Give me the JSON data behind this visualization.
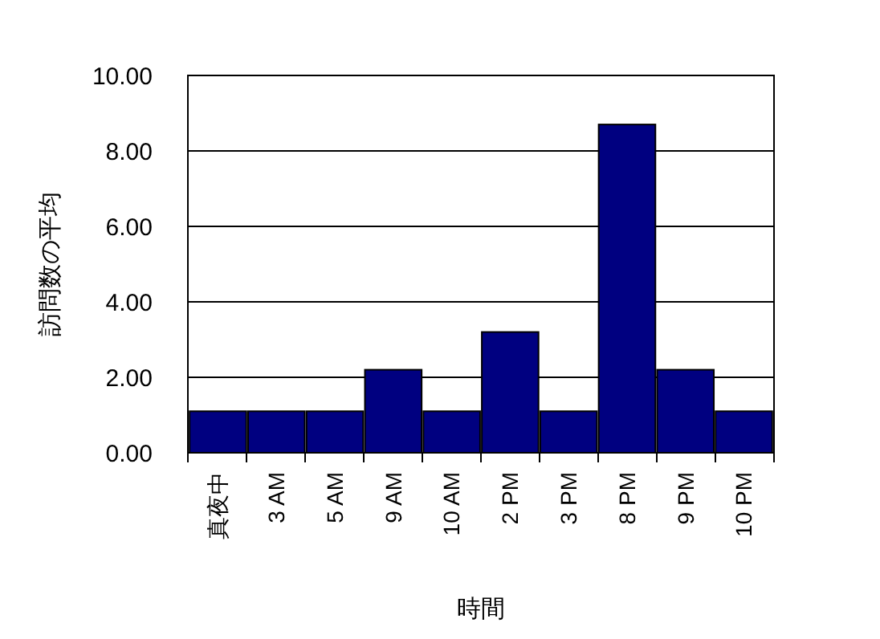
{
  "chart_data": {
    "type": "bar",
    "xlabel": "時間",
    "ylabel": "訪問数の平均",
    "categories": [
      "真夜中",
      "3 AM",
      "5 AM",
      "9 AM",
      "10 AM",
      "2 PM",
      "3 PM",
      "8 PM",
      "9 PM",
      "10 PM"
    ],
    "values": [
      1.1,
      1.1,
      1.1,
      2.2,
      1.1,
      3.2,
      1.1,
      8.7,
      2.2,
      1.1
    ],
    "color": "#000080",
    "ylim": [
      0,
      10
    ],
    "yticks": [
      {
        "value": 0,
        "label": "0.00"
      },
      {
        "value": 2,
        "label": "2.00"
      },
      {
        "value": 4,
        "label": "4.00"
      },
      {
        "value": 6,
        "label": "6.00"
      },
      {
        "value": 8,
        "label": "8.00"
      },
      {
        "value": 10,
        "label": "10.00"
      }
    ],
    "grid": "y"
  }
}
